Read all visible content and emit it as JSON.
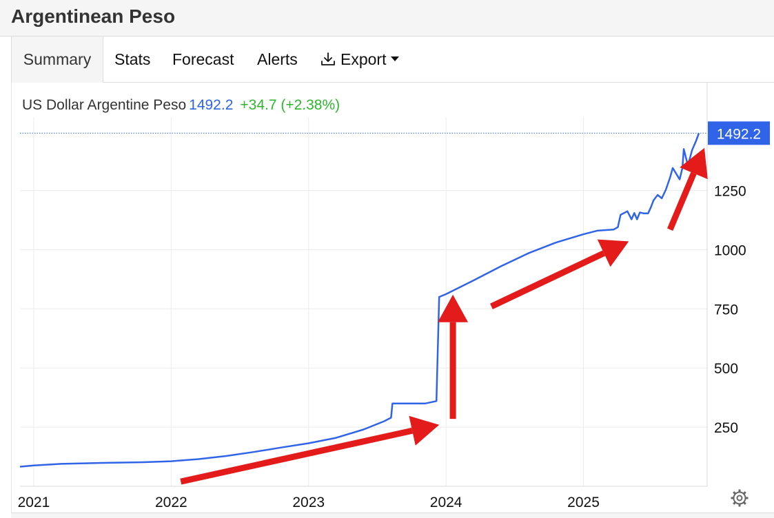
{
  "page": {
    "title": "Argentinean Peso"
  },
  "tabs": [
    {
      "label": "Summary",
      "active": true
    },
    {
      "label": "Stats",
      "active": false
    },
    {
      "label": "Forecast",
      "active": false
    },
    {
      "label": "Alerts",
      "active": false
    },
    {
      "label": "Export",
      "active": false,
      "icon": "download-icon",
      "dropdown": true
    }
  ],
  "legend": {
    "series_name": "US Dollar Argentine Peso",
    "last_value": "1492.2",
    "change": "+34.7 (+2.38%)"
  },
  "colors": {
    "series": "#2f63e8",
    "change_positive": "#2db52d",
    "annotation_arrows": "#e31b1b",
    "last_value_badge": "#2f63e8"
  },
  "settings_icon": "gear-icon",
  "chart_data": {
    "type": "line",
    "title": "US Dollar Argentine Peso",
    "xlabel": "",
    "ylabel": "",
    "x_ticks": [
      "2021",
      "2022",
      "2023",
      "2024",
      "2025"
    ],
    "y_ticks": [
      250,
      500,
      750,
      1000,
      1250
    ],
    "ylim": [
      0,
      1560
    ],
    "xlim": [
      2020.9,
      2025.9
    ],
    "grid": true,
    "y_axis_side": "right",
    "last_value_label": "1492.2",
    "last_value": 1492.2,
    "series": [
      {
        "name": "US Dollar Argentine Peso",
        "x": [
          2020.9,
          2021.0,
          2021.2,
          2021.5,
          2021.8,
          2022.0,
          2022.2,
          2022.4,
          2022.6,
          2022.8,
          2023.0,
          2023.2,
          2023.4,
          2023.55,
          2023.6,
          2023.61,
          2023.65,
          2023.85,
          2023.93,
          2023.95,
          2024.0,
          2024.2,
          2024.4,
          2024.6,
          2024.8,
          2025.0,
          2025.1,
          2025.22,
          2025.25,
          2025.27,
          2025.32,
          2025.35,
          2025.37,
          2025.39,
          2025.41,
          2025.44,
          2025.47,
          2025.49,
          2025.51,
          2025.54,
          2025.57,
          2025.6,
          2025.63,
          2025.65,
          2025.7,
          2025.72,
          2025.73,
          2025.76,
          2025.79,
          2025.82,
          2025.84
        ],
        "y": [
          83,
          88,
          95,
          99,
          102,
          106,
          115,
          128,
          145,
          164,
          182,
          205,
          240,
          275,
          290,
          350,
          350,
          350,
          360,
          800,
          812,
          870,
          930,
          985,
          1030,
          1065,
          1080,
          1085,
          1095,
          1147,
          1162,
          1128,
          1155,
          1128,
          1157,
          1153,
          1153,
          1178,
          1208,
          1231,
          1217,
          1254,
          1305,
          1345,
          1297,
          1345,
          1425,
          1355,
          1420,
          1460,
          1492.2
        ]
      }
    ],
    "annotations": [
      {
        "type": "arrow",
        "from": [
          2022.07,
          20
        ],
        "to": [
          2023.95,
          260
        ],
        "color": "#e31b1b"
      },
      {
        "type": "arrow",
        "from": [
          2024.05,
          285
        ],
        "to": [
          2024.05,
          810
        ],
        "color": "#e31b1b"
      },
      {
        "type": "arrow",
        "from": [
          2024.33,
          760
        ],
        "to": [
          2025.33,
          1035
        ],
        "color": "#e31b1b"
      },
      {
        "type": "arrow",
        "from": [
          2025.63,
          1085
        ],
        "to": [
          2025.88,
          1430
        ],
        "color": "#e31b1b"
      }
    ]
  }
}
